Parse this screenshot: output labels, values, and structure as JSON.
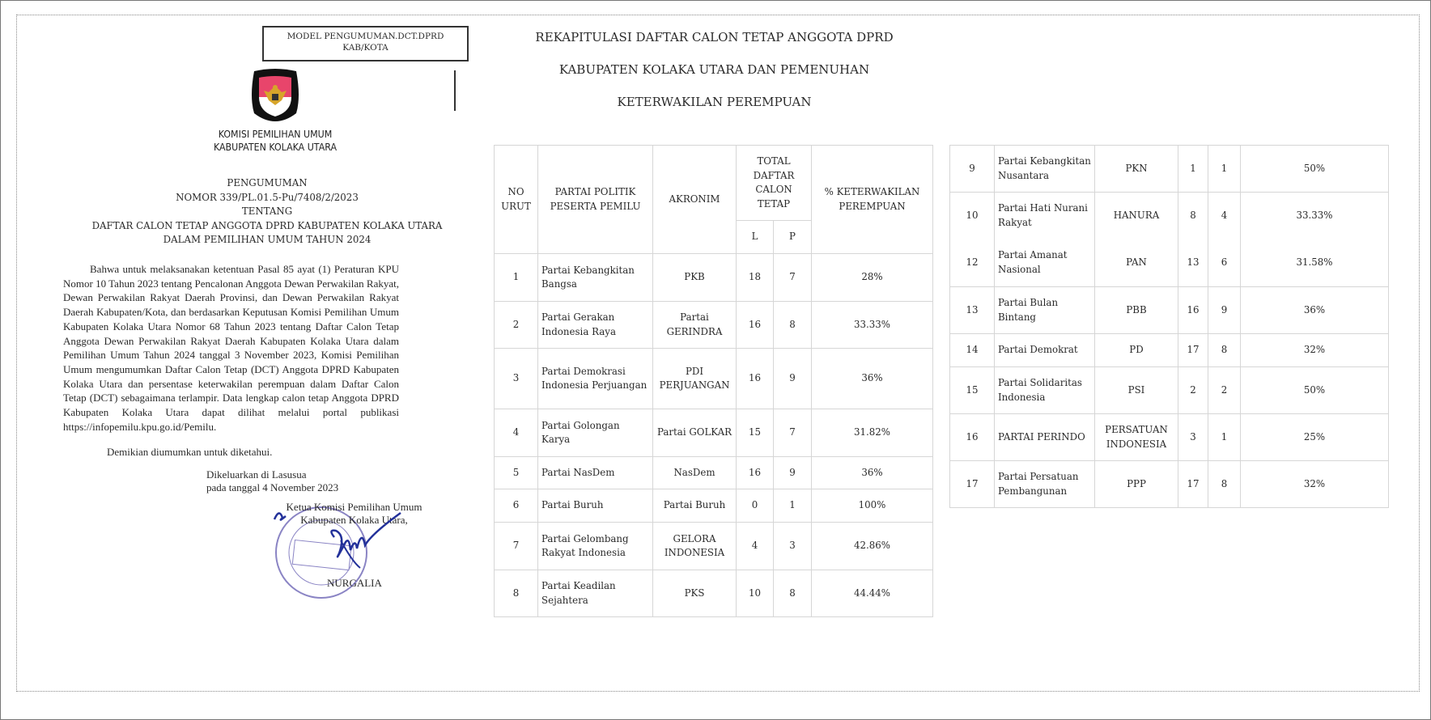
{
  "model_label": [
    "MODEL PENGUMUMAN.DCT.DPRD",
    "KAB/KOTA"
  ],
  "logo": {
    "top_text": "KOMISI",
    "bottom_text": "PEMILIHAN UMUM",
    "colors": {
      "red": "#e8456b",
      "black": "#111111",
      "gold": "#d7a52a"
    }
  },
  "institution": [
    "KOMISI PEMILIHAN UMUM",
    "KABUPATEN KOLAKA UTARA"
  ],
  "announcement": {
    "heading": "PENGUMUMAN",
    "number": "NOMOR 339/PL.01.5-Pu/7408/2/2023",
    "about": "TENTANG",
    "subject_1": "DAFTAR CALON TETAP ANGGOTA DPRD KABUPATEN KOLAKA UTARA",
    "subject_2": "DALAM PEMILIHAN UMUM TAHUN 2024",
    "body": "Bahwa untuk melaksanakan ketentuan Pasal 85 ayat (1) Peraturan KPU Nomor 10 Tahun 2023 tentang Pencalonan Anggota Dewan Perwakilan Rakyat, Dewan Perwakilan Rakyat Daerah Provinsi, dan Dewan Perwakilan Rakyat Daerah Kabupaten/Kota, dan berdasarkan Keputusan Komisi Pemilihan Umum Kabupaten Kolaka Utara Nomor 68 Tahun 2023 tentang Daftar Calon Tetap Anggota Dewan Perwakilan Rakyat Daerah Kabupaten Kolaka Utara dalam Pemilihan Umum Tahun 2024 tanggal 3 November 2023, Komisi Pemilihan Umum mengumumkan Daftar Calon Tetap (DCT) Anggota DPRD Kabupaten Kolaka Utara dan persentase keterwakilan perempuan dalam Daftar Calon Tetap (DCT) sebagaimana terlampir. Data lengkap calon tetap Anggota DPRD Kabupaten Kolaka Utara dapat dilihat melalui portal publikasi https://infopemilu.kpu.go.id/Pemilu.",
    "closing": "Demikian diumumkan untuk diketahui.",
    "issued_place": "Dikeluarkan di Lasusua",
    "issued_date": "pada tanggal 4 November 2023",
    "signatory_title_1": "Ketua Komisi Pemilihan Umum",
    "signatory_title_2": "Kabupaten Kolaka Utara,",
    "signatory_name": "NURGALIA",
    "stamp_text": [
      "KOMISI PEMILIHAN UMUM",
      "KABUPATEN",
      "KOLAKA UTARA"
    ],
    "stamp_color": "#8a84c4",
    "signature_color": "#23319a"
  },
  "title": [
    "REKAPITULASI DAFTAR CALON TETAP ANGGOTA DPRD",
    "KABUPATEN KOLAKA UTARA DAN PEMENUHAN",
    "KETERWAKILAN PEREMPUAN"
  ],
  "table": {
    "headers": {
      "no": [
        "NO",
        "URUT"
      ],
      "party": [
        "PARTAI POLITIK",
        "PESERTA PEMILU"
      ],
      "acronym": "AKRONIM",
      "total": [
        "TOTAL",
        "DAFTAR",
        "CALON",
        "TETAP"
      ],
      "l": "L",
      "p": "P",
      "pct": [
        "% KETERWAKILAN",
        "PEREMPUAN"
      ]
    },
    "rows": [
      {
        "no": "1",
        "party": "Partai Kebangkitan Bangsa",
        "acronym": "PKB",
        "l": "18",
        "p": "7",
        "pct": "28%"
      },
      {
        "no": "2",
        "party": "Partai Gerakan Indonesia Raya",
        "acronym": "Partai GERINDRA",
        "l": "16",
        "p": "8",
        "pct": "33.33%"
      },
      {
        "no": "3",
        "party": "Partai Demokrasi Indonesia Perjuangan",
        "acronym": "PDI PERJUANGAN",
        "l": "16",
        "p": "9",
        "pct": "36%"
      },
      {
        "no": "4",
        "party": "Partai Golongan Karya",
        "acronym": "Partai GOLKAR",
        "l": "15",
        "p": "7",
        "pct": "31.82%"
      },
      {
        "no": "5",
        "party": "Partai NasDem",
        "acronym": "NasDem",
        "l": "16",
        "p": "9",
        "pct": "36%"
      },
      {
        "no": "6",
        "party": "Partai Buruh",
        "acronym": "Partai Buruh",
        "l": "0",
        "p": "1",
        "pct": "100%"
      },
      {
        "no": "7",
        "party": "Partai Gelombang Rakyat Indonesia",
        "acronym": "GELORA INDONESIA",
        "l": "4",
        "p": "3",
        "pct": "42.86%"
      },
      {
        "no": "8",
        "party": "Partai Keadilan Sejahtera",
        "acronym": "PKS",
        "l": "10",
        "p": "8",
        "pct": "44.44%"
      }
    ],
    "rows_right": [
      {
        "no": "9",
        "party": "Partai Kebangkitan Nusantara",
        "acronym": "PKN",
        "l": "1",
        "p": "1",
        "pct": "50%"
      },
      {
        "no": "10",
        "party": "Partai Hati Nurani Rakyat",
        "acronym": "HANURA",
        "l": "8",
        "p": "4",
        "pct": "33.33%"
      },
      {
        "no": "12",
        "party": "Partai Amanat Nasional",
        "acronym": "PAN",
        "l": "13",
        "p": "6",
        "pct": "31.58%"
      },
      {
        "no": "13",
        "party": "Partai Bulan Bintang",
        "acronym": "PBB",
        "l": "16",
        "p": "9",
        "pct": "36%"
      },
      {
        "no": "14",
        "party": "Partai Demokrat",
        "acronym": "PD",
        "l": "17",
        "p": "8",
        "pct": "32%"
      },
      {
        "no": "15",
        "party": "Partai Solidaritas Indonesia",
        "acronym": "PSI",
        "l": "2",
        "p": "2",
        "pct": "50%"
      },
      {
        "no": "16",
        "party": "PARTAI PERINDO",
        "acronym": "PERSATUAN INDONESIA",
        "l": "3",
        "p": "1",
        "pct": "25%"
      },
      {
        "no": "17",
        "party": "Partai Persatuan Pembangunan",
        "acronym": "PPP",
        "l": "17",
        "p": "8",
        "pct": "32%"
      }
    ]
  }
}
